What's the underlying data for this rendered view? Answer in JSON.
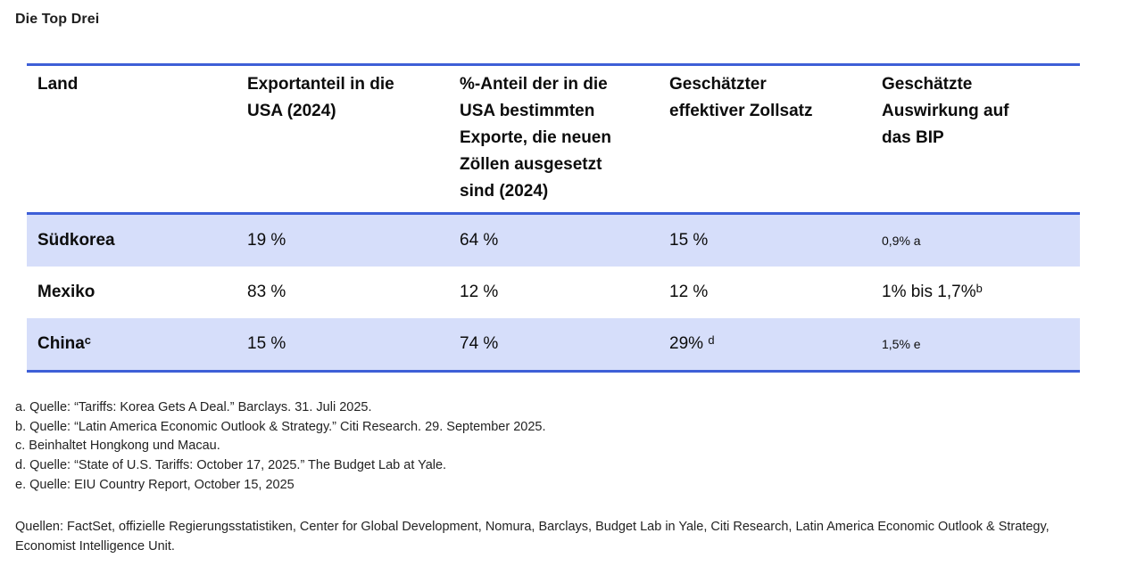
{
  "title": "Die Top Drei",
  "colors": {
    "accent_blue": "#3E5FD7",
    "row_stripe": "#D6DEFA"
  },
  "table": {
    "headers": [
      "Land",
      "Exportanteil in die USA (2024)",
      "%-Anteil der in die USA bestimmten Exporte, die neuen Zöllen ausgesetzt sind (2024)",
      "Geschätzter effektiver Zollsatz",
      "Geschätzte Auswirkung auf das BIP"
    ],
    "rows": [
      {
        "cells": [
          {
            "text": "Südkorea",
            "sup": ""
          },
          {
            "text": "19 %",
            "sup": ""
          },
          {
            "text": "64 %",
            "sup": ""
          },
          {
            "text": "15 %",
            "sup": ""
          },
          {
            "text": "0,9% a",
            "sup": ""
          }
        ]
      },
      {
        "cells": [
          {
            "text": "Mexiko",
            "sup": ""
          },
          {
            "text": "83 %",
            "sup": ""
          },
          {
            "text": "12 %",
            "sup": ""
          },
          {
            "text": "12 %",
            "sup": ""
          },
          {
            "text": "1% bis 1,7%",
            "sup": "b"
          }
        ]
      },
      {
        "cells": [
          {
            "text": "China",
            "sup": "c"
          },
          {
            "text": "15 %",
            "sup": ""
          },
          {
            "text": "74 %",
            "sup": ""
          },
          {
            "text": "29% ",
            "sup": "d"
          },
          {
            "text": "1,5% e",
            "sup": ""
          }
        ]
      }
    ]
  },
  "footnotes": [
    "a. Quelle: “Tariffs: Korea Gets A Deal.” Barclays. 31. Juli 2025.",
    "b. Quelle: “Latin America Economic Outlook & Strategy.” Citi Research. 29. September 2025.",
    "c. Beinhaltet Hongkong und Macau.",
    "d. Quelle: “State of U.S. Tariffs: October 17, 2025.” The Budget Lab at Yale.",
    "e. Quelle: EIU Country Report, October 15, 2025"
  ],
  "sources": "Quellen: FactSet, offizielle Regierungsstatistiken, Center for Global Development, Nomura, Barclays, Budget Lab in Yale, Citi Research, Latin America Economic Outlook & Strategy, Economist Intelligence Unit."
}
